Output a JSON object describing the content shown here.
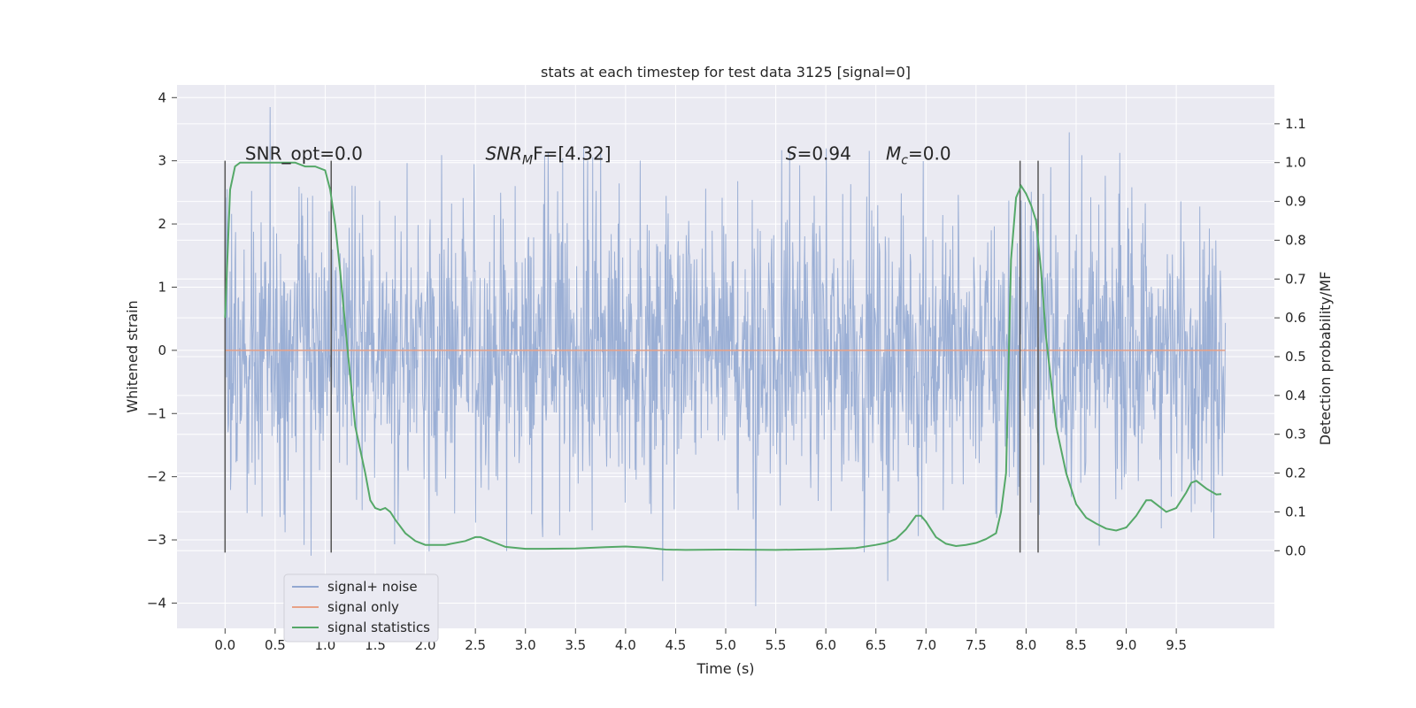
{
  "chart_data": {
    "type": "line",
    "title": "stats at each timestep for test data 3125 [signal=0]",
    "xlabel": "Time (s)",
    "ylabel": "Whitened strain",
    "y2label": "Detection probability/MF",
    "xlim": [
      -0.48,
      10.48
    ],
    "ylim": [
      -4.4,
      4.2
    ],
    "y2lim": [
      -0.2,
      1.2
    ],
    "x_ticks": [
      "0.0",
      "0.5",
      "1.0",
      "1.5",
      "2.0",
      "2.5",
      "3.0",
      "3.5",
      "4.0",
      "4.5",
      "5.0",
      "5.5",
      "6.0",
      "6.5",
      "7.0",
      "7.5",
      "8.0",
      "8.5",
      "9.0",
      "9.5"
    ],
    "y_ticks": [
      "−4",
      "−3",
      "−2",
      "−1",
      "0",
      "1",
      "2",
      "3",
      "4"
    ],
    "y2_ticks": [
      "0.0",
      "0.1",
      "0.2",
      "0.3",
      "0.4",
      "0.5",
      "0.6",
      "0.7",
      "0.8",
      "0.9",
      "1.0",
      "1.1"
    ],
    "grid": true,
    "legend_position": "lower-left",
    "annotations": [
      {
        "prefix": "SNR_opt=0.0",
        "italic": "",
        "sub": "",
        "suffix": ""
      },
      {
        "prefix": "",
        "italic": "SNR",
        "sub": "M",
        "suffix": "F=[4.32]"
      },
      {
        "prefix": "",
        "italic": "S",
        "sub": "",
        "suffix": "=0.94"
      },
      {
        "prefix": "",
        "italic": "M",
        "sub": "c",
        "suffix": "=0.0"
      }
    ],
    "annotation_x": [
      0.2,
      2.6,
      5.6,
      6.6
    ],
    "annotation_y": 3.0,
    "window_markers": [
      {
        "x": 0.0,
        "ymin": -3.2,
        "ymax": 3.0
      },
      {
        "x": 1.06,
        "ymin": -3.2,
        "ymax": 3.0
      },
      {
        "x": 7.94,
        "ymin": -3.2,
        "ymax": 3.0
      },
      {
        "x": 8.12,
        "ymin": -3.2,
        "ymax": 3.0
      }
    ],
    "series": [
      {
        "name": "signal+ noise",
        "color": "#92a8d1",
        "description_range": [
          0.0,
          9.99
        ],
        "envelope_typical": [
          -2.3,
          2.3
        ],
        "extremes": [
          [
            0.45,
            3.85
          ],
          [
            0.86,
            -3.25
          ],
          [
            4.37,
            -3.65
          ],
          [
            5.3,
            -4.05
          ],
          [
            6.62,
            -3.65
          ],
          [
            8.43,
            3.45
          ]
        ]
      },
      {
        "name": "signal only",
        "color": "#e8a186",
        "x": [
          0.0,
          9.99
        ],
        "y": [
          0.0,
          0.0
        ]
      },
      {
        "name": "signal statistics",
        "color": "#55a868",
        "axis": "right",
        "x": [
          0.0,
          0.05,
          0.1,
          0.15,
          0.2,
          0.3,
          0.5,
          0.7,
          0.8,
          0.9,
          1.0,
          1.05,
          1.1,
          1.15,
          1.2,
          1.25,
          1.3,
          1.4,
          1.45,
          1.5,
          1.55,
          1.6,
          1.65,
          1.7,
          1.8,
          1.9,
          2.0,
          2.2,
          2.4,
          2.5,
          2.55,
          2.6,
          2.7,
          2.8,
          3.0,
          3.2,
          3.5,
          3.8,
          4.0,
          4.2,
          4.4,
          4.6,
          5.0,
          5.5,
          6.0,
          6.3,
          6.5,
          6.6,
          6.7,
          6.8,
          6.9,
          6.95,
          7.0,
          7.1,
          7.2,
          7.3,
          7.4,
          7.5,
          7.6,
          7.7,
          7.75,
          7.8,
          7.85,
          7.9,
          7.95,
          8.0,
          8.05,
          8.1,
          8.15,
          8.2,
          8.3,
          8.4,
          8.5,
          8.6,
          8.7,
          8.8,
          8.9,
          9.0,
          9.1,
          9.15,
          9.2,
          9.25,
          9.3,
          9.4,
          9.5,
          9.6,
          9.65,
          9.7,
          9.8,
          9.9,
          9.95
        ],
        "y": [
          0.6,
          0.93,
          0.99,
          1.0,
          1.0,
          1.0,
          1.0,
          1.0,
          0.99,
          0.99,
          0.98,
          0.93,
          0.84,
          0.72,
          0.58,
          0.45,
          0.32,
          0.2,
          0.13,
          0.11,
          0.105,
          0.11,
          0.1,
          0.08,
          0.045,
          0.025,
          0.015,
          0.015,
          0.025,
          0.035,
          0.035,
          0.03,
          0.02,
          0.01,
          0.005,
          0.005,
          0.006,
          0.009,
          0.011,
          0.008,
          0.003,
          0.002,
          0.003,
          0.002,
          0.004,
          0.007,
          0.015,
          0.02,
          0.03,
          0.055,
          0.09,
          0.09,
          0.075,
          0.035,
          0.018,
          0.012,
          0.015,
          0.02,
          0.03,
          0.045,
          0.1,
          0.2,
          0.75,
          0.91,
          0.94,
          0.92,
          0.89,
          0.85,
          0.72,
          0.55,
          0.32,
          0.2,
          0.12,
          0.085,
          0.07,
          0.057,
          0.052,
          0.06,
          0.09,
          0.11,
          0.13,
          0.13,
          0.12,
          0.1,
          0.11,
          0.15,
          0.175,
          0.18,
          0.16,
          0.145,
          0.146
        ]
      }
    ]
  }
}
